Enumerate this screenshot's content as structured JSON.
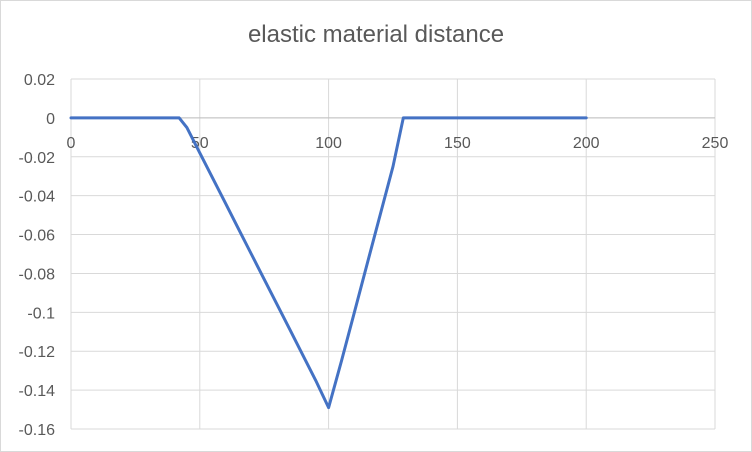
{
  "chart_data": {
    "type": "line",
    "title": "elastic material distance",
    "xlabel": "",
    "ylabel": "",
    "xlim": [
      0,
      250
    ],
    "ylim": [
      -0.16,
      0.02
    ],
    "x_ticks": [
      0,
      50,
      100,
      150,
      200,
      250
    ],
    "x_tick_labels": [
      "0",
      "50",
      "100",
      "150",
      "200",
      "250"
    ],
    "y_ticks": [
      0.02,
      0,
      -0.02,
      -0.04,
      -0.06,
      -0.08,
      -0.1,
      -0.12,
      -0.14,
      -0.16
    ],
    "y_tick_labels": [
      "0.02",
      "0",
      "-0.02",
      "-0.04",
      "-0.06",
      "-0.08",
      "-0.1",
      "-0.12",
      "-0.14",
      "-0.16"
    ],
    "grid": true,
    "legend": "none",
    "series": [
      {
        "color": "#4472c4",
        "x": [
          0,
          10,
          20,
          30,
          40,
          42,
          45,
          50,
          55,
          60,
          65,
          70,
          75,
          80,
          85,
          90,
          95,
          100,
          105,
          110,
          115,
          120,
          125,
          129,
          130,
          140,
          150,
          160,
          170,
          180,
          190,
          200
        ],
        "y": [
          0,
          0,
          0,
          0,
          0,
          0,
          -0.005,
          -0.018,
          -0.031,
          -0.044,
          -0.057,
          -0.07,
          -0.083,
          -0.096,
          -0.109,
          -0.122,
          -0.135,
          -0.149,
          -0.125,
          -0.1,
          -0.075,
          -0.05,
          -0.025,
          0,
          0,
          0,
          0,
          0,
          0,
          0,
          0,
          0
        ]
      }
    ]
  }
}
